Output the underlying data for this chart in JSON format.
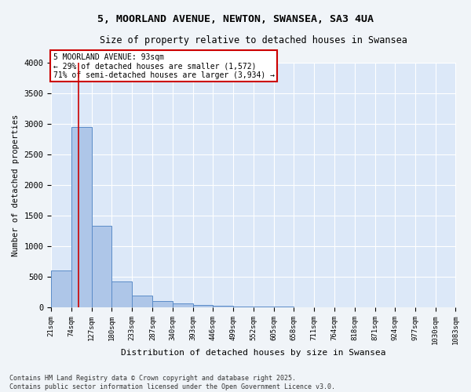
{
  "title": "5, MOORLAND AVENUE, NEWTON, SWANSEA, SA3 4UA",
  "subtitle": "Size of property relative to detached houses in Swansea",
  "xlabel": "Distribution of detached houses by size in Swansea",
  "ylabel": "Number of detached properties",
  "bar_color": "#aec6e8",
  "bar_edge_color": "#5b8cc8",
  "background_color": "#dce8f8",
  "fig_background": "#f0f4f8",
  "bins": [
    21,
    74,
    127,
    180,
    233,
    287,
    340,
    393,
    446,
    499,
    552,
    605,
    658,
    711,
    764,
    818,
    871,
    924,
    977,
    1030,
    1083
  ],
  "counts": [
    600,
    2950,
    1340,
    420,
    195,
    110,
    70,
    40,
    25,
    15,
    10,
    8,
    6,
    5,
    4,
    3,
    3,
    2,
    2,
    2
  ],
  "property_size": 93,
  "annotation_text": "5 MOORLAND AVENUE: 93sqm\n← 29% of detached houses are smaller (1,572)\n71% of semi-detached houses are larger (3,934) →",
  "annotation_box_color": "#cc0000",
  "vline_color": "#cc0000",
  "footer_text": "Contains HM Land Registry data © Crown copyright and database right 2025.\nContains public sector information licensed under the Open Government Licence v3.0.",
  "ylim": [
    0,
    4000
  ],
  "yticks": [
    0,
    500,
    1000,
    1500,
    2000,
    2500,
    3000,
    3500,
    4000
  ],
  "grid_color": "#ffffff",
  "tick_labels": [
    "21sqm",
    "74sqm",
    "127sqm",
    "180sqm",
    "233sqm",
    "287sqm",
    "340sqm",
    "393sqm",
    "446sqm",
    "499sqm",
    "552sqm",
    "605sqm",
    "658sqm",
    "711sqm",
    "764sqm",
    "818sqm",
    "871sqm",
    "924sqm",
    "977sqm",
    "1030sqm",
    "1083sqm"
  ]
}
